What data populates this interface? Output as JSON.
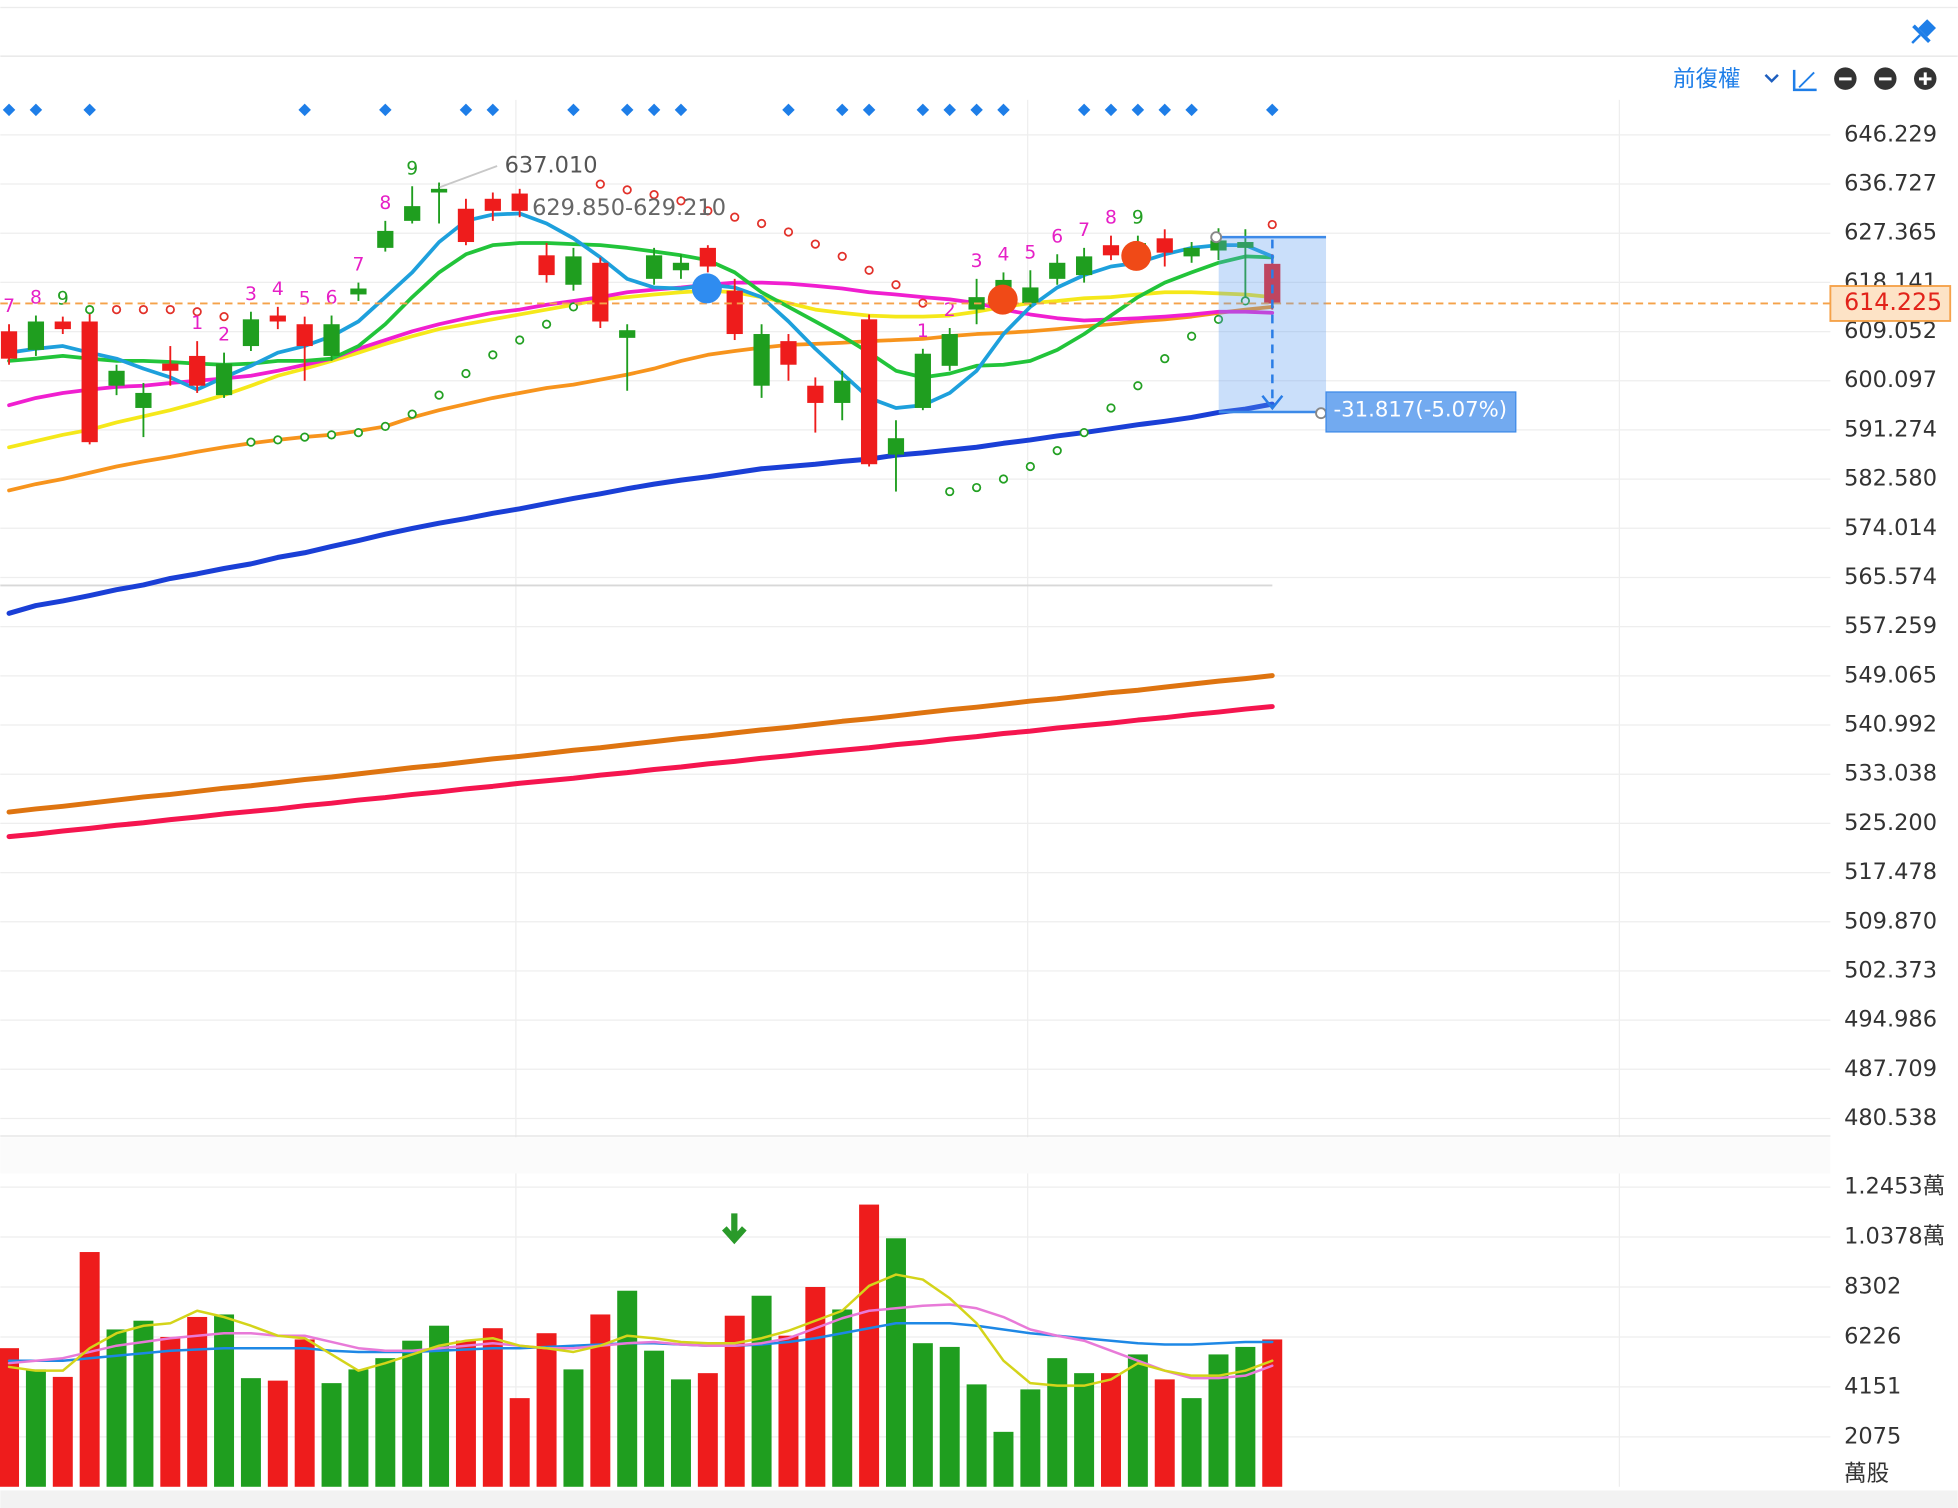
{
  "toolbar": {
    "adjust": "前復權"
  },
  "chart_data": [
    {
      "type": "candlestick",
      "log_scale": true,
      "grid": true,
      "up_color": "#1f9e1f",
      "down_color": "#ee1c1c",
      "ylim": [
        478.37,
        653.07
      ],
      "yticks": [
        646.229,
        636.727,
        627.365,
        618.141,
        609.052,
        600.097,
        591.274,
        {
          "value": 582.58,
          "label": "582.580"
        },
        574.014,
        565.574,
        557.259,
        549.065,
        540.992,
        533.038,
        {
          "value": 525.2,
          "label": "525.200"
        },
        517.478,
        {
          "value": 509.87,
          "label": "509.870"
        },
        502.373,
        494.986,
        487.709,
        480.538
      ],
      "open": [
        609.1,
        605.7,
        610.9,
        610.9,
        599.2,
        595.2,
        603.2,
        604.6,
        597.5,
        606.4,
        612.0,
        610.4,
        604.6,
        615.9,
        624.6,
        629.7,
        635.1,
        632.0,
        633.9,
        634.9,
        623.2,
        617.7,
        621.8,
        607.9,
        618.8,
        620.4,
        624.6,
        616.6,
        599.2,
        607.3,
        599.2,
        596.1,
        611.3,
        586.9,
        595.2,
        602.8,
        613.1,
        614.3,
        614.3,
        618.8,
        619.5,
        625.1,
        621.8,
        626.4,
        623.0,
        624.1,
        624.6,
        621.6
      ],
      "high": [
        610.4,
        612.0,
        611.8,
        613.1,
        603.0,
        599.7,
        606.4,
        607.3,
        605.2,
        612.7,
        613.6,
        611.8,
        612.0,
        618.1,
        629.7,
        636.3,
        637.01,
        633.9,
        635.1,
        635.8,
        625.5,
        624.6,
        622.8,
        610.4,
        624.6,
        623.4,
        625.1,
        618.8,
        610.4,
        608.6,
        600.7,
        601.9,
        612.2,
        593.0,
        605.9,
        609.7,
        618.8,
        620.0,
        620.4,
        623.4,
        624.6,
        626.9,
        626.9,
        628.1,
        625.7,
        628.3,
        628.1,
        623.4
      ],
      "low": [
        603.0,
        604.6,
        608.6,
        588.7,
        597.5,
        590.0,
        599.2,
        597.9,
        597.0,
        605.5,
        609.5,
        600.1,
        603.7,
        614.7,
        623.9,
        629.2,
        629.2,
        625.1,
        629.7,
        630.4,
        618.1,
        616.6,
        609.7,
        598.3,
        617.7,
        618.8,
        620.0,
        607.5,
        597.0,
        600.1,
        590.8,
        593.0,
        584.8,
        580.4,
        594.8,
        601.9,
        610.4,
        613.1,
        613.6,
        617.7,
        618.1,
        622.3,
        620.9,
        621.1,
        621.8,
        622.3,
        614.3,
        613.1
      ],
      "close": [
        604.1,
        610.9,
        609.5,
        589.1,
        601.9,
        597.9,
        601.9,
        599.2,
        603.2,
        611.3,
        610.9,
        606.4,
        610.4,
        617.0,
        627.8,
        632.5,
        635.8,
        625.7,
        631.6,
        631.6,
        619.5,
        623.0,
        610.9,
        609.3,
        623.2,
        621.8,
        621.1,
        608.6,
        608.6,
        603.0,
        596.1,
        600.1,
        585.2,
        589.8,
        605.0,
        608.6,
        615.4,
        618.6,
        617.2,
        621.8,
        623.0,
        623.2,
        625.5,
        623.7,
        624.6,
        626.0,
        625.7,
        614.2
      ],
      "series": [
        {
          "color": "#f5154f",
          "values": [
            523.1,
            523.5,
            524.0,
            524.4,
            524.9,
            525.3,
            525.8,
            526.2,
            526.7,
            527.1,
            527.5,
            528.0,
            528.4,
            528.9,
            529.3,
            529.8,
            530.2,
            530.7,
            531.1,
            531.6,
            532.0,
            532.4,
            532.9,
            533.3,
            533.8,
            534.2,
            534.7,
            535.1,
            535.6,
            536.0,
            536.5,
            536.9,
            537.3,
            537.8,
            538.2,
            538.7,
            539.1,
            539.6,
            540.0,
            540.5,
            540.9,
            541.3,
            541.8,
            542.2,
            542.7,
            543.1,
            543.6,
            544.0
          ]
        },
        {
          "color": "#de7410",
          "values": [
            527.0,
            527.5,
            527.9,
            528.4,
            528.9,
            529.4,
            529.8,
            530.3,
            530.8,
            531.2,
            531.7,
            532.2,
            532.6,
            533.1,
            533.6,
            534.1,
            534.5,
            535.0,
            535.5,
            535.9,
            536.4,
            536.9,
            537.3,
            537.8,
            538.3,
            538.8,
            539.2,
            539.7,
            540.2,
            540.6,
            541.1,
            541.6,
            542.0,
            542.5,
            543.0,
            543.5,
            543.9,
            544.4,
            544.9,
            545.3,
            545.8,
            546.3,
            546.7,
            547.2,
            547.7,
            548.2,
            548.6,
            549.1
          ]
        },
        {
          "color": "#1a3fd6",
          "values": [
            559.5,
            560.8,
            561.6,
            562.5,
            563.5,
            564.3,
            565.4,
            566.2,
            567.1,
            567.9,
            569.0,
            569.8,
            570.9,
            571.9,
            573.0,
            574.0,
            574.9,
            575.7,
            576.6,
            577.4,
            578.3,
            579.2,
            580.0,
            580.9,
            581.7,
            582.4,
            583.0,
            583.7,
            584.4,
            584.8,
            585.2,
            585.7,
            586.1,
            586.8,
            587.2,
            587.7,
            588.2,
            588.9,
            589.5,
            590.2,
            590.8,
            591.5,
            592.2,
            592.8,
            593.5,
            594.4,
            595.0,
            595.9
          ]
        },
        {
          "color": "#f7941d",
          "values": [
            580.6,
            581.7,
            582.6,
            583.7,
            584.8,
            585.7,
            586.5,
            587.4,
            588.2,
            588.9,
            589.5,
            590.0,
            590.4,
            591.1,
            591.9,
            593.5,
            594.8,
            595.9,
            597.0,
            597.9,
            598.8,
            599.4,
            600.3,
            601.2,
            602.3,
            603.7,
            604.8,
            605.5,
            606.1,
            606.6,
            606.8,
            607.0,
            607.3,
            607.5,
            607.7,
            608.2,
            608.6,
            608.8,
            609.1,
            609.5,
            610.0,
            610.4,
            610.9,
            611.3,
            611.8,
            612.5,
            613.1,
            613.6
          ]
        },
        {
          "color": "#f5e81a",
          "values": [
            588.2,
            589.3,
            590.4,
            591.3,
            592.6,
            593.7,
            594.8,
            596.1,
            597.5,
            599.2,
            601.0,
            602.3,
            603.7,
            605.2,
            606.8,
            608.2,
            609.5,
            610.4,
            611.3,
            612.2,
            613.1,
            614.0,
            615.0,
            615.4,
            615.9,
            616.3,
            616.6,
            616.3,
            615.4,
            614.3,
            613.1,
            612.5,
            612.0,
            611.8,
            611.8,
            612.0,
            612.7,
            613.6,
            614.3,
            614.7,
            615.2,
            615.4,
            615.9,
            616.3,
            616.3,
            616.1,
            615.9,
            615.4
          ]
        },
        {
          "color": "#f01fd0",
          "values": [
            595.7,
            597.0,
            597.9,
            598.5,
            599.0,
            599.2,
            599.7,
            600.1,
            600.5,
            601.0,
            601.9,
            603.0,
            604.1,
            605.9,
            607.5,
            609.1,
            610.4,
            611.5,
            612.5,
            613.1,
            614.0,
            614.7,
            615.4,
            616.3,
            616.8,
            617.2,
            617.7,
            618.1,
            618.1,
            617.9,
            617.5,
            617.0,
            616.3,
            615.9,
            615.4,
            615.0,
            614.3,
            613.1,
            612.2,
            611.5,
            611.1,
            611.3,
            611.5,
            611.8,
            612.2,
            612.7,
            612.7,
            612.5
          ]
        },
        {
          "color": "#22c43a",
          "values": [
            603.7,
            604.1,
            604.6,
            604.1,
            603.7,
            603.7,
            603.5,
            603.2,
            603.0,
            603.2,
            603.7,
            603.7,
            604.1,
            606.4,
            610.4,
            615.4,
            620.0,
            623.4,
            625.1,
            625.5,
            625.5,
            625.3,
            625.1,
            624.6,
            623.9,
            623.2,
            622.3,
            620.0,
            616.3,
            613.6,
            610.9,
            608.2,
            605.2,
            601.9,
            600.7,
            601.4,
            602.8,
            603.0,
            603.7,
            605.7,
            608.6,
            612.0,
            615.4,
            618.1,
            620.0,
            621.8,
            623.0,
            622.8
          ]
        },
        {
          "color": "#1ea0dc",
          "values": [
            605.2,
            605.9,
            606.4,
            605.2,
            604.1,
            602.3,
            600.7,
            598.5,
            600.7,
            602.8,
            605.2,
            606.4,
            608.2,
            610.9,
            615.4,
            620.0,
            625.7,
            629.7,
            630.9,
            631.1,
            629.2,
            626.4,
            622.8,
            618.8,
            617.2,
            617.0,
            617.7,
            617.2,
            615.4,
            610.9,
            605.9,
            601.4,
            597.0,
            595.2,
            595.7,
            597.9,
            601.9,
            608.6,
            613.6,
            617.2,
            619.5,
            621.1,
            621.8,
            623.4,
            624.6,
            625.1,
            625.1,
            623.0
          ]
        }
      ],
      "sar": [
        null,
        null,
        null,
        613.1,
        613.1,
        613.1,
        613.1,
        612.7,
        611.8,
        589.1,
        589.5,
        590.0,
        590.4,
        590.8,
        591.9,
        594.1,
        597.5,
        601.4,
        604.8,
        607.5,
        610.4,
        613.6,
        636.7,
        635.6,
        634.7,
        633.5,
        631.6,
        630.4,
        629.2,
        627.6,
        625.3,
        623.0,
        620.4,
        617.7,
        614.3,
        580.4,
        581.1,
        582.6,
        584.8,
        587.6,
        590.8,
        595.2,
        599.2,
        604.1,
        608.2,
        611.3,
        614.7,
        629.0
      ],
      "td_labels": [
        "7",
        "8",
        "9",
        null,
        null,
        null,
        null,
        "1",
        "2",
        "3",
        "4",
        "5",
        "6",
        "7",
        "8",
        "9",
        null,
        null,
        null,
        null,
        null,
        null,
        null,
        null,
        null,
        null,
        null,
        null,
        null,
        null,
        null,
        null,
        null,
        null,
        "1",
        "2",
        "3",
        "4",
        "5",
        "6",
        "7",
        "8",
        "9",
        null,
        null,
        null,
        null,
        null
      ],
      "td_colors": [
        "#e61fc6",
        "#e61fc6",
        "#23a023",
        null,
        null,
        null,
        null,
        "#e61fc6",
        "#e61fc6",
        "#e61fc6",
        "#e61fc6",
        "#e61fc6",
        "#e61fc6",
        "#e61fc6",
        "#e61fc6",
        "#23a023",
        null,
        null,
        null,
        null,
        null,
        null,
        null,
        null,
        null,
        null,
        null,
        null,
        null,
        null,
        null,
        null,
        null,
        null,
        "#e61fc6",
        "#e61fc6",
        "#e61fc6",
        "#e61fc6",
        "#e61fc6",
        "#e61fc6",
        "#e61fc6",
        "#e61fc6",
        "#23a023",
        null,
        null,
        null,
        null,
        null
      ],
      "signals": [
        true,
        true,
        false,
        true,
        false,
        false,
        false,
        false,
        false,
        false,
        false,
        true,
        false,
        false,
        true,
        false,
        false,
        true,
        true,
        false,
        false,
        true,
        false,
        true,
        true,
        true,
        false,
        false,
        false,
        true,
        false,
        true,
        true,
        false,
        true,
        true,
        true,
        true,
        false,
        false,
        true,
        true,
        true,
        true,
        true,
        false,
        false,
        true
      ],
      "high_label": "637.010",
      "range_label": "629.850-629.210",
      "measure_label": "-31.817(-5.07%)",
      "last_price": 614.225
    },
    {
      "type": "bar",
      "grid": true,
      "ylim": [
        0,
        13021
      ],
      "yticks": [
        {
          "value": 12453,
          "label": "1.2453萬"
        },
        {
          "value": 10378,
          "label": "1.0378萬"
        },
        8302,
        6226,
        4151,
        2075
      ],
      "y_unit": "萬股",
      "values": [
        5760,
        4878,
        4566,
        9755,
        6538,
        6901,
        6227,
        7057,
        7161,
        4514,
        4411,
        6123,
        4307,
        4878,
        5345,
        6071,
        6694,
        6071,
        6590,
        3684,
        6382,
        4878,
        7161,
        8147,
        5656,
        4463,
        4722,
        7109,
        7939,
        6279,
        8302,
        7368,
        11727,
        10326,
        5967,
        5812,
        4255,
        2283,
        4047,
        5345,
        4722,
        4722,
        5500,
        4463,
        3684,
        5500,
        5812,
        6123
      ],
      "series": [
        {
          "color": "#1e88e5",
          "values": [
            5241,
            5241,
            5241,
            5345,
            5448,
            5552,
            5656,
            5708,
            5760,
            5760,
            5760,
            5760,
            5656,
            5604,
            5604,
            5604,
            5656,
            5708,
            5760,
            5760,
            5812,
            5864,
            5915,
            5967,
            5967,
            5915,
            5864,
            5864,
            5915,
            6019,
            6175,
            6382,
            6590,
            6798,
            6798,
            6798,
            6694,
            6538,
            6382,
            6279,
            6175,
            6071,
            5967,
            5915,
            5915,
            5967,
            6019,
            6019
          ]
        },
        {
          "color": "#e87ad8",
          "values": [
            5137,
            5241,
            5345,
            5604,
            5864,
            6019,
            6175,
            6279,
            6382,
            6382,
            6279,
            6279,
            6019,
            5760,
            5656,
            5656,
            5760,
            5864,
            5967,
            5864,
            5760,
            5760,
            5864,
            5967,
            6019,
            5915,
            5864,
            5864,
            5967,
            6175,
            6590,
            7005,
            7316,
            7420,
            7524,
            7576,
            7420,
            7057,
            6538,
            6279,
            6071,
            5656,
            5241,
            4826,
            4514,
            4514,
            4618,
            5033
          ]
        },
        {
          "color": "#d4d41a",
          "values": [
            4981,
            4826,
            4826,
            5760,
            6382,
            6694,
            6798,
            7316,
            7057,
            6694,
            6279,
            6175,
            5500,
            4826,
            5137,
            5500,
            5864,
            6071,
            6175,
            5864,
            5760,
            5604,
            5864,
            6279,
            6175,
            6019,
            5967,
            5967,
            6175,
            6486,
            6901,
            7316,
            8354,
            8821,
            8614,
            7835,
            6798,
            5241,
            4307,
            4203,
            4203,
            4463,
            5137,
            4826,
            4618,
            4618,
            4826,
            5241
          ]
        }
      ]
    }
  ]
}
